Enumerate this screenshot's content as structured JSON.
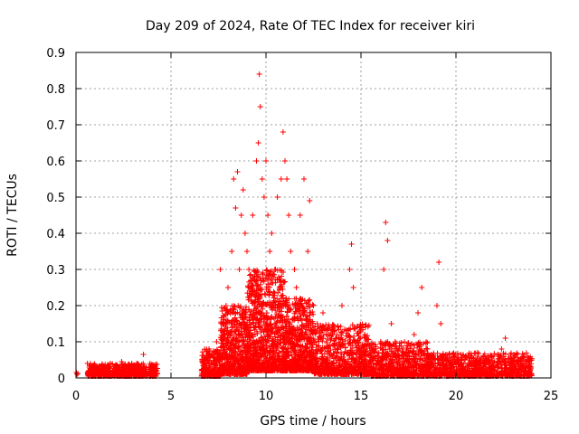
{
  "chart_data": {
    "type": "scatter",
    "title": "Day 209 of 2024, Rate Of TEC Index for receiver kiri",
    "xlabel": "GPS time / hours",
    "ylabel": "ROTI / TECUs",
    "xlim": [
      0,
      25
    ],
    "ylim": [
      0,
      0.9
    ],
    "xticks": [
      "0",
      "5",
      "10",
      "15",
      "20",
      "25"
    ],
    "yticks": [
      "0",
      "0.1",
      "0.2",
      "0.3",
      "0.4",
      "0.5",
      "0.6",
      "0.7",
      "0.8",
      "0.9"
    ],
    "grid": true,
    "marker": "+",
    "color": "#ff0000",
    "series": [
      {
        "points": [
          [
            0.02,
            0.015
          ],
          [
            0.05,
            0.01
          ],
          [
            0.1,
            0.012
          ],
          [
            0.6,
            0.04
          ],
          [
            0.7,
            0.03
          ],
          [
            0.8,
            0.02
          ],
          [
            1.0,
            0.035
          ],
          [
            1.2,
            0.02
          ],
          [
            1.4,
            0.03
          ],
          [
            1.6,
            0.025
          ],
          [
            1.8,
            0.04
          ],
          [
            2.0,
            0.02
          ],
          [
            2.2,
            0.03
          ],
          [
            2.4,
            0.045
          ],
          [
            2.6,
            0.02
          ],
          [
            2.8,
            0.035
          ],
          [
            3.0,
            0.025
          ],
          [
            3.2,
            0.04
          ],
          [
            3.4,
            0.02
          ],
          [
            3.55,
            0.065
          ],
          [
            3.7,
            0.03
          ],
          [
            3.9,
            0.025
          ],
          [
            4.1,
            0.035
          ],
          [
            4.25,
            0.02
          ],
          [
            6.6,
            0.02
          ],
          [
            6.8,
            0.05
          ],
          [
            7.0,
            0.08
          ],
          [
            7.2,
            0.06
          ],
          [
            7.4,
            0.1
          ],
          [
            7.6,
            0.3
          ],
          [
            7.8,
            0.12
          ],
          [
            7.9,
            0.2
          ],
          [
            8.0,
            0.25
          ],
          [
            8.2,
            0.35
          ],
          [
            8.3,
            0.55
          ],
          [
            8.4,
            0.47
          ],
          [
            8.5,
            0.57
          ],
          [
            8.6,
            0.3
          ],
          [
            8.7,
            0.45
          ],
          [
            8.8,
            0.52
          ],
          [
            8.9,
            0.4
          ],
          [
            9.0,
            0.35
          ],
          [
            9.1,
            0.3
          ],
          [
            9.2,
            0.25
          ],
          [
            9.3,
            0.45
          ],
          [
            9.5,
            0.6
          ],
          [
            9.6,
            0.65
          ],
          [
            9.65,
            0.84
          ],
          [
            9.7,
            0.75
          ],
          [
            9.8,
            0.55
          ],
          [
            9.9,
            0.5
          ],
          [
            10.0,
            0.6
          ],
          [
            10.1,
            0.45
          ],
          [
            10.2,
            0.35
          ],
          [
            10.3,
            0.4
          ],
          [
            10.5,
            0.3
          ],
          [
            10.6,
            0.5
          ],
          [
            10.8,
            0.55
          ],
          [
            10.9,
            0.68
          ],
          [
            11.0,
            0.6
          ],
          [
            11.1,
            0.55
          ],
          [
            11.2,
            0.45
          ],
          [
            11.3,
            0.35
          ],
          [
            11.5,
            0.3
          ],
          [
            11.6,
            0.25
          ],
          [
            11.8,
            0.45
          ],
          [
            12.0,
            0.55
          ],
          [
            12.2,
            0.35
          ],
          [
            12.3,
            0.49
          ],
          [
            12.5,
            0.2
          ],
          [
            12.7,
            0.15
          ],
          [
            13.0,
            0.18
          ],
          [
            13.5,
            0.12
          ],
          [
            14.0,
            0.2
          ],
          [
            14.4,
            0.3
          ],
          [
            14.5,
            0.37
          ],
          [
            14.6,
            0.25
          ],
          [
            14.8,
            0.1
          ],
          [
            15.0,
            0.08
          ],
          [
            15.2,
            0.12
          ],
          [
            15.5,
            0.05
          ],
          [
            15.8,
            0.04
          ],
          [
            16.2,
            0.3
          ],
          [
            16.3,
            0.43
          ],
          [
            16.4,
            0.38
          ],
          [
            16.6,
            0.15
          ],
          [
            16.8,
            0.1
          ],
          [
            17.0,
            0.06
          ],
          [
            17.5,
            0.04
          ],
          [
            17.8,
            0.12
          ],
          [
            18.0,
            0.18
          ],
          [
            18.2,
            0.25
          ],
          [
            18.5,
            0.08
          ],
          [
            18.8,
            0.06
          ],
          [
            19.0,
            0.2
          ],
          [
            19.1,
            0.32
          ],
          [
            19.2,
            0.15
          ],
          [
            19.5,
            0.05
          ],
          [
            20.0,
            0.04
          ],
          [
            20.5,
            0.06
          ],
          [
            21.0,
            0.05
          ],
          [
            21.5,
            0.04
          ],
          [
            22.0,
            0.06
          ],
          [
            22.4,
            0.08
          ],
          [
            22.6,
            0.11
          ],
          [
            23.0,
            0.05
          ],
          [
            23.5,
            0.03
          ],
          [
            23.9,
            0.02
          ]
        ]
      }
    ],
    "density": [
      {
        "x0": 0.6,
        "x1": 4.3,
        "ymin": 0.005,
        "ymax": 0.04,
        "n": 600
      },
      {
        "x0": 6.6,
        "x1": 7.6,
        "ymin": 0.005,
        "ymax": 0.08,
        "n": 250
      },
      {
        "x0": 7.6,
        "x1": 9.0,
        "ymin": 0.01,
        "ymax": 0.2,
        "n": 500
      },
      {
        "x0": 9.0,
        "x1": 11.0,
        "ymin": 0.02,
        "ymax": 0.3,
        "n": 900
      },
      {
        "x0": 11.0,
        "x1": 12.5,
        "ymin": 0.02,
        "ymax": 0.22,
        "n": 600
      },
      {
        "x0": 12.5,
        "x1": 15.5,
        "ymin": 0.01,
        "ymax": 0.15,
        "n": 700
      },
      {
        "x0": 15.5,
        "x1": 18.5,
        "ymin": 0.005,
        "ymax": 0.1,
        "n": 600
      },
      {
        "x0": 18.5,
        "x1": 24.0,
        "ymin": 0.005,
        "ymax": 0.07,
        "n": 900
      }
    ]
  }
}
